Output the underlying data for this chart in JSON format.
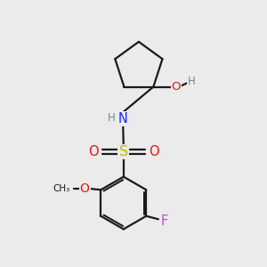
{
  "background_color": "#ebebeb",
  "bond_color": "#1a1a1a",
  "bond_width": 1.6,
  "atom_colors": {
    "C": "#1a1a1a",
    "H": "#6a8a8a",
    "N": "#2020ff",
    "O": "#ee1111",
    "S": "#bbbb00",
    "F": "#cc44cc"
  },
  "figsize": [
    3.0,
    3.0
  ],
  "dpi": 100
}
